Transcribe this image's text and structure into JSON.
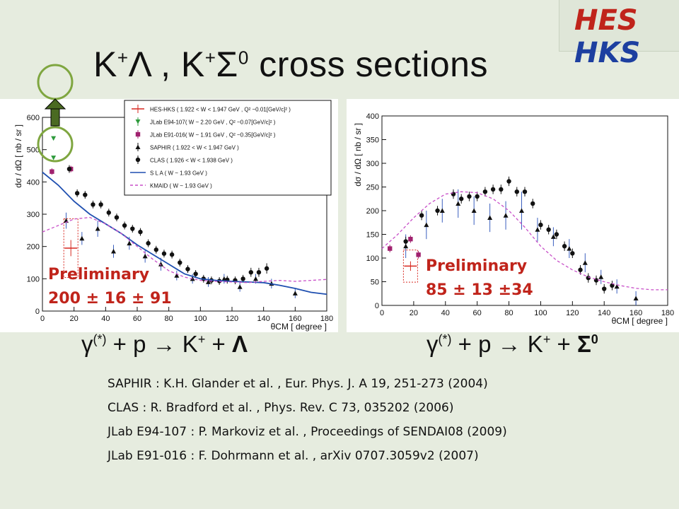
{
  "slide": {
    "title_parts": {
      "k1": "K",
      "plus1": "+",
      "lambda": "Λ , ",
      "k2": "K",
      "plus2": "+",
      "sigma": "Σ",
      "zero": "0",
      "rest": " cross sections"
    },
    "logo": {
      "hes": "HES",
      "hks": "HKS"
    }
  },
  "reactions": {
    "lambda": {
      "gamma": "γ",
      "star": "(*)",
      "mid": " + p ",
      "arrow": "→",
      "k": " K",
      "kplus": "+",
      "plus": " + ",
      "final": "Λ"
    },
    "sigma": {
      "gamma": "γ",
      "star": "(*)",
      "mid": " + p ",
      "arrow": "→",
      "k": " K",
      "kplus": "+",
      "plus": " + ",
      "final": "Σ",
      "final_sup": "0"
    }
  },
  "preliminary": {
    "lambda": {
      "label": "Preliminary",
      "value": "200 ± 16 ± 91"
    },
    "sigma": {
      "label": "Preliminary",
      "value": "85 ± 13 ±34"
    }
  },
  "references": [
    "SAPHIR : K.H. Glander et al. , Eur. Phys. J. A 19, 251-273 (2004)",
    "CLAS : R. Bradford et al. , Phys. Rev. C 73, 035202 (2006)",
    "JLab E94-107 : P. Markoviz et al. , Proceedings of SENDAI08 (2009)",
    "JLab E91-016 : F. Dohrmann et al. , arXiv 0707.3059v2 (2007)"
  ],
  "legend": [
    {
      "label": "HES-HKS ( 1.922 < W < 1.947 GeV , Q² ~0.01[GeV/c]² )",
      "color": "#d7261e",
      "marker": "cross"
    },
    {
      "label": "JLab E94-107( W ~ 2.20 GeV , Q² ~0.07[GeV/c]² )",
      "color": "#2e9a3c",
      "marker": "tri-down"
    },
    {
      "label": "JLab E91-016( W ~ 1.91 GeV , Q² ~0.35[GeV/c]² )",
      "color": "#a0216e",
      "marker": "square"
    },
    {
      "label": "SAPHIR ( 1.922 < W < 1.947 GeV )",
      "color": "#111111",
      "marker": "triangle"
    },
    {
      "label": "CLAS ( 1.926 < W < 1.938 GeV )",
      "color": "#111111",
      "marker": "circle"
    },
    {
      "label": "S L A ( W ~ 1.93 GeV )",
      "color": "#1f4fb0",
      "marker": "solid-line"
    },
    {
      "label": "KMAID ( W ~ 1.93 GeV )",
      "color": "#c84fc8",
      "marker": "dashed-line"
    }
  ],
  "chart_data": [
    {
      "type": "scatter",
      "xlabel": "θCM [ degree ]",
      "ylabel": "dσ / dΩ [ nb / sr ]",
      "xlim": [
        0,
        180
      ],
      "ylim": [
        0,
        600
      ],
      "xticks": [
        0,
        20,
        40,
        60,
        80,
        100,
        120,
        140,
        160,
        180
      ],
      "yticks": [
        0,
        100,
        200,
        300,
        400,
        500,
        600
      ],
      "series": [
        {
          "name": "HES-HKS",
          "points": [
            [
              18,
              195
            ]
          ],
          "err": [
            25
          ]
        },
        {
          "name": "JLab E94-107",
          "points": [
            [
              7,
              535
            ],
            [
              7,
              475
            ]
          ],
          "err": [
            0,
            0
          ]
        },
        {
          "name": "JLab E91-016",
          "points": [
            [
              6,
              432
            ],
            [
              18,
              440
            ]
          ],
          "err": [
            10,
            10
          ]
        },
        {
          "name": "SAPHIR",
          "x": [
            15,
            25,
            35,
            45,
            55,
            65,
            75,
            85,
            95,
            105,
            115,
            125,
            135,
            145,
            160
          ],
          "y": [
            280,
            225,
            255,
            185,
            210,
            170,
            145,
            110,
            100,
            90,
            100,
            75,
            100,
            85,
            55
          ],
          "err": [
            25,
            20,
            25,
            20,
            20,
            20,
            20,
            15,
            15,
            15,
            15,
            15,
            15,
            15,
            15
          ]
        },
        {
          "name": "CLAS",
          "x": [
            17,
            22,
            27,
            32,
            37,
            42,
            47,
            52,
            57,
            62,
            67,
            72,
            77,
            82,
            87,
            92,
            97,
            102,
            107,
            112,
            117,
            122,
            127,
            132,
            137,
            142
          ],
          "y": [
            440,
            365,
            360,
            330,
            330,
            305,
            290,
            265,
            255,
            245,
            210,
            190,
            178,
            175,
            150,
            130,
            115,
            100,
            95,
            93,
            97,
            95,
            100,
            120,
            120,
            132
          ],
          "err": [
            12,
            12,
            12,
            12,
            12,
            12,
            12,
            12,
            12,
            12,
            12,
            12,
            12,
            12,
            12,
            12,
            12,
            12,
            12,
            12,
            12,
            12,
            12,
            14,
            14,
            16
          ]
        },
        {
          "name": "SLA",
          "x": [
            0,
            10,
            20,
            30,
            40,
            50,
            60,
            70,
            80,
            90,
            100,
            110,
            120,
            130,
            140,
            150,
            160,
            170,
            180
          ],
          "y": [
            430,
            390,
            340,
            300,
            270,
            240,
            205,
            175,
            145,
            115,
            100,
            95,
            92,
            90,
            88,
            80,
            70,
            58,
            52
          ]
        },
        {
          "name": "KMAID",
          "x": [
            0,
            10,
            20,
            30,
            40,
            50,
            60,
            70,
            80,
            90,
            100,
            110,
            120,
            130,
            140,
            150,
            160,
            170,
            180
          ],
          "y": [
            245,
            265,
            285,
            290,
            270,
            240,
            200,
            160,
            125,
            105,
            95,
            92,
            90,
            88,
            92,
            95,
            92,
            95,
            98
          ]
        }
      ]
    },
    {
      "type": "scatter",
      "xlabel": "θCM [ degree ]",
      "ylabel": "dσ / dΩ [ nb / sr ]",
      "xlim": [
        0,
        180
      ],
      "ylim": [
        0,
        400
      ],
      "xticks": [
        0,
        20,
        40,
        60,
        80,
        100,
        120,
        140,
        160,
        180
      ],
      "yticks": [
        0,
        50,
        100,
        150,
        200,
        250,
        300,
        350,
        400
      ],
      "series": [
        {
          "name": "HES-HKS",
          "points": [
            [
              18,
              83
            ]
          ],
          "err": [
            10
          ]
        },
        {
          "name": "JLab E91-016",
          "points": [
            [
              5,
              120
            ],
            [
              18,
              140
            ],
            [
              23,
              107
            ]
          ],
          "err": [
            8,
            8,
            8
          ]
        },
        {
          "name": "SAPHIR",
          "x": [
            15,
            28,
            38,
            48,
            58,
            68,
            78,
            88,
            98,
            108,
            118,
            128,
            138,
            148,
            160
          ],
          "y": [
            125,
            170,
            200,
            215,
            200,
            185,
            190,
            200,
            160,
            145,
            120,
            90,
            60,
            40,
            15
          ],
          "err": [
            25,
            30,
            25,
            30,
            30,
            30,
            30,
            40,
            25,
            20,
            20,
            20,
            15,
            15,
            15
          ]
        },
        {
          "name": "CLAS",
          "x": [
            15,
            25,
            35,
            45,
            50,
            55,
            60,
            65,
            70,
            75,
            80,
            85,
            90,
            95,
            100,
            105,
            110,
            115,
            120,
            125,
            130,
            135,
            140,
            145
          ],
          "y": [
            135,
            190,
            200,
            235,
            225,
            230,
            230,
            240,
            245,
            245,
            262,
            240,
            240,
            215,
            170,
            160,
            150,
            125,
            110,
            75,
            58,
            53,
            35,
            42
          ],
          "err": [
            10,
            10,
            10,
            10,
            10,
            10,
            10,
            10,
            10,
            10,
            10,
            10,
            10,
            10,
            10,
            10,
            10,
            10,
            10,
            10,
            10,
            10,
            10,
            10
          ]
        },
        {
          "name": "KMAID",
          "x": [
            0,
            10,
            20,
            30,
            40,
            50,
            60,
            70,
            80,
            90,
            100,
            110,
            120,
            130,
            140,
            150,
            160,
            170,
            180
          ],
          "y": [
            120,
            150,
            185,
            215,
            235,
            240,
            238,
            225,
            200,
            165,
            125,
            95,
            75,
            60,
            50,
            42,
            36,
            33,
            33
          ]
        }
      ]
    }
  ]
}
